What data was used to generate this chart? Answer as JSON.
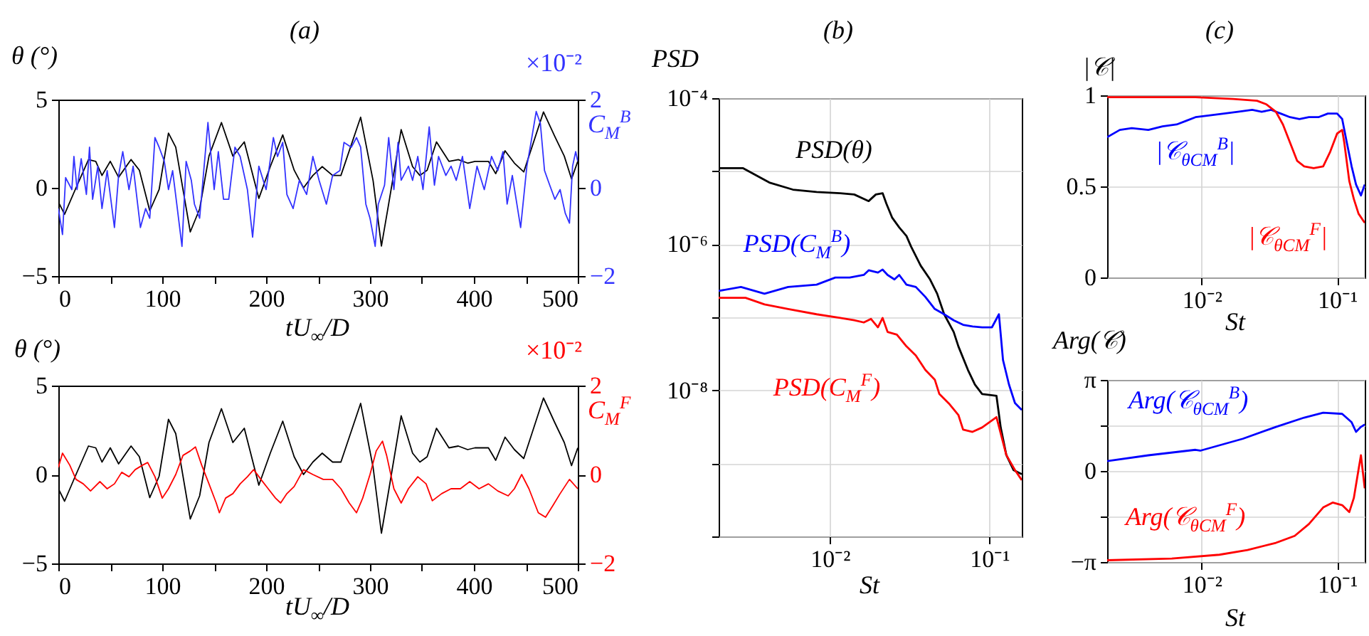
{
  "chart_data": [
    {
      "type": "line",
      "title": "(a)",
      "xlabel": "tU$_{∞}$/D",
      "ylabel": "θ (°)",
      "y2label": "C$_{M}$$^{B}$",
      "annotations": [
        "×10⁻²"
      ],
      "xlim": [
        0,
        500
      ],
      "xticks": [
        0,
        {
          "value": 50,
          "label": null
        },
        100,
        {
          "value": 150,
          "label": null
        },
        200,
        {
          "value": 250,
          "label": null
        },
        300,
        {
          "value": 350,
          "label": null
        },
        400,
        {
          "value": 450,
          "label": null
        },
        500
      ],
      "ylim": [
        -5,
        5
      ],
      "yticks": [
        -5,
        0,
        5
      ],
      "y2lim": [
        -2,
        2
      ],
      "y2ticks": [
        -2,
        0,
        2
      ],
      "series": [
        {
          "color": "#000000",
          "x": [
            0,
            6,
            17,
            29,
            36,
            42,
            50,
            58,
            70,
            78,
            88,
            97,
            106,
            113,
            127,
            136,
            145,
            157,
            168,
            179,
            193,
            204,
            216,
            227,
            236,
            245,
            254,
            264,
            272,
            291,
            303,
            311,
            318,
            330,
            341,
            348,
            355,
            364,
            376,
            385,
            394,
            401,
            414,
            421,
            430,
            439,
            448,
            467,
            478,
            487,
            494,
            500
          ],
          "values": [
            -0.8,
            -1.5,
            0,
            1.6,
            1.5,
            0.7,
            1.5,
            0.6,
            1.6,
            1,
            -1.3,
            -0.1,
            3.1,
            2.3,
            -2.5,
            -1.2,
            1.8,
            3.7,
            1.8,
            2.6,
            -0.6,
            1.2,
            3,
            1,
            0,
            0.7,
            1.2,
            0.7,
            0.7,
            4,
            0.4,
            -3.3,
            -0.9,
            3.3,
            1.2,
            0.7,
            1,
            2.6,
            1.5,
            1.6,
            1.4,
            1.5,
            1.5,
            0.8,
            2.1,
            1.4,
            0.9,
            4.3,
            2.9,
            1.8,
            0.5,
            1.5
          ]
        },
        {
          "color": "#3333ff",
          "axis": "y2",
          "x": [
            0,
            4,
            7,
            13,
            15,
            18,
            22,
            27,
            30,
            33,
            38,
            42,
            47,
            54,
            58,
            62,
            68,
            72,
            79,
            84,
            88,
            93,
            97,
            102,
            106,
            110,
            114,
            119,
            123,
            128,
            131,
            136,
            144,
            150,
            154,
            159,
            164,
            170,
            175,
            182,
            187,
            193,
            200,
            207,
            211,
            216,
            220,
            226,
            232,
            239,
            245,
            251,
            258,
            264,
            271,
            275,
            282,
            287,
            291,
            296,
            300,
            305,
            308,
            314,
            318,
            323,
            327,
            330,
            337,
            341,
            346,
            351,
            357,
            362,
            366,
            373,
            378,
            383,
            389,
            396,
            403,
            410,
            417,
            423,
            428,
            432,
            437,
            445,
            451,
            455,
            460,
            464,
            468,
            473,
            478,
            483,
            488,
            492,
            495,
            498,
            500
          ],
          "values": [
            -0.47,
            -1.06,
            0.23,
            -0.04,
            0.71,
            -0.04,
            0.66,
            -0.15,
            0.92,
            -0.26,
            0.49,
            -0.47,
            0.39,
            -0.9,
            0.28,
            0.82,
            -0.04,
            0.49,
            -0.9,
            -0.47,
            -0.69,
            1.14,
            0.92,
            0.6,
            -0.04,
            0.39,
            -0.37,
            -1.33,
            0.6,
            0.17,
            -0.37,
            -0.69,
            1.48,
            -0.04,
            0.82,
            -0.26,
            -0.26,
            0.92,
            0.71,
            -0.04,
            -1.12,
            0.49,
            -0.04,
            1.14,
            0.71,
            1.03,
            -0.15,
            -0.47,
            0.17,
            -0.15,
            0.71,
            0.17,
            -0.37,
            0.28,
            0.39,
            1.03,
            0.92,
            1.14,
            0.92,
            -0.37,
            -0.69,
            -1.33,
            -0.37,
            0.06,
            1.14,
            -0.04,
            1.03,
            0.17,
            0.49,
            0.17,
            0.71,
            -0.04,
            1.38,
            0.06,
            0.71,
            0.28,
            0.49,
            0.17,
            0.71,
            -0.47,
            0.49,
            -0.04,
            0.71,
            0.39,
            0.82,
            -0.37,
            0.28,
            -0.9,
            0.49,
            1.03,
            1.73,
            1.46,
            0.39,
            0.06,
            -0.26,
            -0.04,
            -0.58,
            -0.8,
            0.49,
            0.82,
            0.6
          ]
        }
      ]
    },
    {
      "type": "line",
      "xlabel": "tU$_{∞}$/D",
      "ylabel": "θ (°)",
      "y2label": "C$_{M}$$^{F}$",
      "annotations": [
        "×10⁻²"
      ],
      "xlim": [
        0,
        500
      ],
      "xticks": [
        0,
        {
          "value": 50,
          "label": null
        },
        100,
        {
          "value": 150,
          "label": null
        },
        200,
        {
          "value": 250,
          "label": null
        },
        300,
        {
          "value": 350,
          "label": null
        },
        400,
        {
          "value": 450,
          "label": null
        },
        500
      ],
      "ylim": [
        -5,
        5
      ],
      "yticks": [
        -5,
        0,
        5
      ],
      "y2lim": [
        -2,
        2
      ],
      "y2ticks": [
        -2,
        0,
        2
      ],
      "series": [
        {
          "color": "#000000",
          "x": [
            0,
            6,
            17,
            29,
            36,
            42,
            50,
            58,
            70,
            78,
            88,
            97,
            106,
            113,
            127,
            136,
            145,
            157,
            168,
            179,
            193,
            204,
            216,
            227,
            236,
            245,
            254,
            264,
            272,
            291,
            303,
            311,
            318,
            330,
            341,
            348,
            355,
            364,
            376,
            385,
            394,
            401,
            414,
            421,
            430,
            439,
            448,
            467,
            478,
            487,
            494,
            500
          ],
          "values": [
            -0.8,
            -1.5,
            0,
            1.6,
            1.5,
            0.7,
            1.5,
            0.6,
            1.6,
            1,
            -1.3,
            -0.1,
            3.1,
            2.3,
            -2.5,
            -1.2,
            1.8,
            3.7,
            1.8,
            2.6,
            -0.6,
            1.2,
            3,
            1,
            0,
            0.7,
            1.2,
            0.7,
            0.7,
            4,
            0.4,
            -3.3,
            -0.9,
            3.3,
            1.2,
            0.7,
            1,
            2.6,
            1.5,
            1.6,
            1.4,
            1.5,
            1.5,
            0.8,
            2.1,
            1.4,
            0.9,
            4.3,
            2.9,
            1.8,
            0.5,
            1.5
          ]
        },
        {
          "color": "#ff0000",
          "axis": "y2",
          "x": [
            0,
            4,
            11,
            17,
            24,
            31,
            40,
            47,
            54,
            61,
            68,
            74,
            81,
            86,
            93,
            100,
            106,
            113,
            120,
            127,
            132,
            138,
            145,
            152,
            155,
            161,
            168,
            175,
            182,
            188,
            195,
            202,
            209,
            214,
            220,
            227,
            236,
            245,
            255,
            264,
            272,
            280,
            287,
            293,
            300,
            306,
            312,
            316,
            323,
            330,
            337,
            346,
            354,
            360,
            369,
            378,
            387,
            396,
            405,
            414,
            423,
            433,
            439,
            446,
            453,
            462,
            469,
            476,
            483,
            492,
            500
          ],
          "values": [
            0.16,
            0.48,
            0.21,
            -0.11,
            -0.21,
            -0.37,
            -0.16,
            -0.32,
            -0.21,
            0.05,
            -0.05,
            0.11,
            0.21,
            0.27,
            -0.05,
            -0.53,
            -0.32,
            0,
            0.43,
            0.53,
            0.62,
            0.21,
            -0.21,
            -0.64,
            -0.86,
            -0.53,
            -0.43,
            -0.21,
            -0.05,
            0.11,
            -0.11,
            -0.32,
            -0.53,
            -0.64,
            -0.43,
            -0.27,
            0.11,
            0,
            -0.11,
            -0.11,
            -0.32,
            -0.64,
            -0.86,
            -0.53,
            0,
            0.53,
            0.75,
            0.43,
            -0.32,
            -0.64,
            -0.32,
            -0.05,
            -0.21,
            -0.59,
            -0.43,
            -0.32,
            -0.32,
            -0.16,
            -0.32,
            -0.21,
            -0.37,
            -0.48,
            -0.32,
            0,
            -0.32,
            -0.86,
            -0.96,
            -0.7,
            -0.43,
            -0.11,
            -0.32
          ]
        }
      ]
    },
    {
      "type": "line",
      "title": "(b)",
      "xlabel": "St",
      "ylabel": "PSD",
      "log": "xy",
      "grid": true,
      "xlim": [
        0.002,
        0.16
      ],
      "xticks": [
        {
          "value": 0.01,
          "label": "10⁻²"
        },
        {
          "value": 0.1,
          "label": "10⁻¹"
        }
      ],
      "ylim": [
        1e-10,
        0.0001
      ],
      "yticks": [
        {
          "value": 1e-10,
          "label": null
        },
        {
          "value": 1e-09,
          "label": null
        },
        {
          "value": 1e-08,
          "label": "10⁻⁸"
        },
        {
          "value": 1e-07,
          "label": null
        },
        {
          "value": 1e-06,
          "label": "10⁻⁶"
        },
        {
          "value": 1e-05,
          "label": null
        },
        {
          "value": 0.0001,
          "label": "10⁻⁴"
        }
      ],
      "series": [
        {
          "name": "PSD(θ)",
          "color": "#000000",
          "x": [
            0.002,
            0.00285,
            0.00416,
            0.00585,
            0.00824,
            0.0116,
            0.0142,
            0.0175,
            0.0194,
            0.0214,
            0.0226,
            0.0246,
            0.0272,
            0.0302,
            0.0323,
            0.0371,
            0.0425,
            0.0471,
            0.0521,
            0.0598,
            0.064,
            0.0735,
            0.0813,
            0.0902,
            0.111,
            0.118,
            0.128,
            0.142,
            0.16
          ],
          "values": [
            1.1e-05,
            1.1e-05,
            7e-06,
            5.6e-06,
            5.2e-06,
            5e-06,
            4.8e-06,
            3.9e-06,
            4.8e-06,
            5e-06,
            3.6e-06,
            2.3e-06,
            1.7e-06,
            1.3e-06,
            9.3e-07,
            5.1e-07,
            3.3e-07,
            2.1e-07,
            1.1e-07,
            6.3e-08,
            4e-08,
            1.9e-08,
            1.2e-08,
            8.9e-09,
            8.4e-09,
            3.1e-09,
            1.3e-09,
            8.1e-10,
            7.1e-10
          ]
        },
        {
          "name": "PSD(C$_{M}$$^{B}$)",
          "color": "#0000ff",
          "x": [
            0.002,
            0.00276,
            0.00388,
            0.00546,
            0.00824,
            0.0108,
            0.0133,
            0.0163,
            0.0175,
            0.02,
            0.0214,
            0.023,
            0.0254,
            0.0272,
            0.0302,
            0.0346,
            0.0397,
            0.0455,
            0.0521,
            0.0598,
            0.0685,
            0.0785,
            0.0902,
            0.104,
            0.115,
            0.122,
            0.133,
            0.145,
            0.16
          ],
          "values": [
            2.3e-07,
            2.6e-07,
            2.1e-07,
            2.6e-07,
            2.8e-07,
            3.5e-07,
            3.5e-07,
            3.8e-07,
            4.4e-07,
            4.1e-07,
            4.5e-07,
            3.8e-07,
            3.3e-07,
            3.8e-07,
            2.8e-07,
            2.6e-07,
            1.9e-07,
            1.3e-07,
            1.1e-07,
            9.1e-08,
            7.9e-08,
            7.5e-08,
            7.3e-08,
            7.3e-08,
            1.1e-07,
            2.6e-08,
            1.2e-08,
            6.7e-09,
            5.4e-09
          ]
        },
        {
          "name": "PSD(C$_{M}$$^{F}$)",
          "color": "#ff0000",
          "x": [
            0.002,
            0.00295,
            0.00388,
            0.00546,
            0.00824,
            0.0116,
            0.0142,
            0.0163,
            0.0181,
            0.02,
            0.0214,
            0.023,
            0.0263,
            0.0302,
            0.0346,
            0.0397,
            0.0455,
            0.0486,
            0.0558,
            0.064,
            0.0685,
            0.0785,
            0.0902,
            0.111,
            0.128,
            0.145,
            0.16
          ],
          "values": [
            1.85e-07,
            1.85e-07,
            1.5e-07,
            1.3e-07,
            1.1e-07,
            9.8e-08,
            9.1e-08,
            8.5e-08,
            9.5e-08,
            7.3e-08,
            9.8e-08,
            6.3e-08,
            5.8e-08,
            4e-08,
            3e-08,
            1.9e-08,
            1.4e-08,
            8.9e-09,
            6.6e-09,
            4.6e-09,
            2.9e-09,
            2.7e-09,
            3.1e-09,
            4.3e-09,
            1.3e-09,
            8.1e-10,
            5.9e-10
          ]
        }
      ]
    },
    {
      "type": "line",
      "title": "(c)",
      "xlabel": "St",
      "ylabel": "|𝒞|",
      "log": "x",
      "grid": true,
      "xlim": [
        0.002,
        0.16
      ],
      "xticks": [
        {
          "value": 0.01,
          "label": "10⁻²"
        },
        {
          "value": 0.1,
          "label": "10⁻¹"
        }
      ],
      "ylim": [
        0,
        1
      ],
      "yticks": [
        0,
        0.5,
        1
      ],
      "series": [
        {
          "name": "|𝒞$_{θC}$$_{M}$$^{B}$|",
          "color": "#0000ff",
          "x": [
            0.002,
            0.00248,
            0.00304,
            0.00403,
            0.00513,
            0.00652,
            0.00766,
            0.00899,
            0.0115,
            0.0146,
            0.0185,
            0.0236,
            0.0277,
            0.0326,
            0.0383,
            0.0449,
            0.0527,
            0.0619,
            0.0728,
            0.0855,
            0.1,
            0.109,
            0.118,
            0.128,
            0.138,
            0.15,
            0.16
          ],
          "values": [
            0.77,
            0.81,
            0.82,
            0.81,
            0.83,
            0.84,
            0.86,
            0.88,
            0.89,
            0.9,
            0.91,
            0.92,
            0.91,
            0.92,
            0.9,
            0.88,
            0.87,
            0.88,
            0.88,
            0.9,
            0.9,
            0.87,
            0.74,
            0.61,
            0.51,
            0.45,
            0.51
          ]
        },
        {
          "name": "|𝒞$_{θC}$$_{M}$$^{F}$|",
          "color": "#ff0000",
          "x": [
            0.002,
            0.00403,
            0.00899,
            0.0171,
            0.0256,
            0.0301,
            0.0353,
            0.0398,
            0.0449,
            0.0507,
            0.0571,
            0.0671,
            0.0789,
            0.0889,
            0.1,
            0.109,
            0.113,
            0.123,
            0.133,
            0.144,
            0.16
          ],
          "values": [
            0.99,
            0.99,
            0.99,
            0.98,
            0.97,
            0.95,
            0.91,
            0.84,
            0.74,
            0.64,
            0.61,
            0.6,
            0.61,
            0.69,
            0.79,
            0.81,
            0.74,
            0.53,
            0.43,
            0.35,
            0.3
          ]
        }
      ]
    },
    {
      "type": "line",
      "xlabel": "St",
      "ylabel": "Arg(𝒞)",
      "log": "x",
      "grid": true,
      "xlim": [
        0.002,
        0.16
      ],
      "xticks": [
        {
          "value": 0.01,
          "label": "10⁻²"
        },
        {
          "value": 0.1,
          "label": "10⁻¹"
        }
      ],
      "ylim": [
        -3.1416,
        3.1416
      ],
      "yticks": [
        {
          "value": -3.1416,
          "label": "−π"
        },
        {
          "value": -1.5708,
          "label": null
        },
        0,
        {
          "value": 1.5708,
          "label": null
        },
        {
          "value": 3.1416,
          "label": "π"
        }
      ],
      "series": [
        {
          "name": "Arg(𝒞$_{θC}$$_{M}$$^{B}$)",
          "color": "#0000ff",
          "x": [
            0.002,
            0.00403,
            0.00899,
            0.00975,
            0.0201,
            0.0353,
            0.0571,
            0.0789,
            0.109,
            0.128,
            0.138,
            0.15,
            0.16
          ],
          "values": [
            0.34,
            0.54,
            0.73,
            0.7,
            1.11,
            1.52,
            1.84,
            2.01,
            1.97,
            1.68,
            1.35,
            1.52,
            1.6
          ]
        },
        {
          "name": "Arg(𝒞$_{θC}$$_{M}$$^{F}$)",
          "color": "#ff0000",
          "x": [
            0.002,
            0.00601,
            0.0135,
            0.0218,
            0.0353,
            0.0486,
            0.0619,
            0.0789,
            0.0927,
            0.109,
            0.123,
            0.133,
            0.144,
            0.15,
            0.16
          ],
          "values": [
            -3.08,
            -3.02,
            -2.89,
            -2.73,
            -2.48,
            -2.24,
            -1.83,
            -1.26,
            -1.09,
            -1.18,
            -1.42,
            -0.93,
            0.05,
            0.54,
            -0.6
          ]
        }
      ]
    }
  ]
}
